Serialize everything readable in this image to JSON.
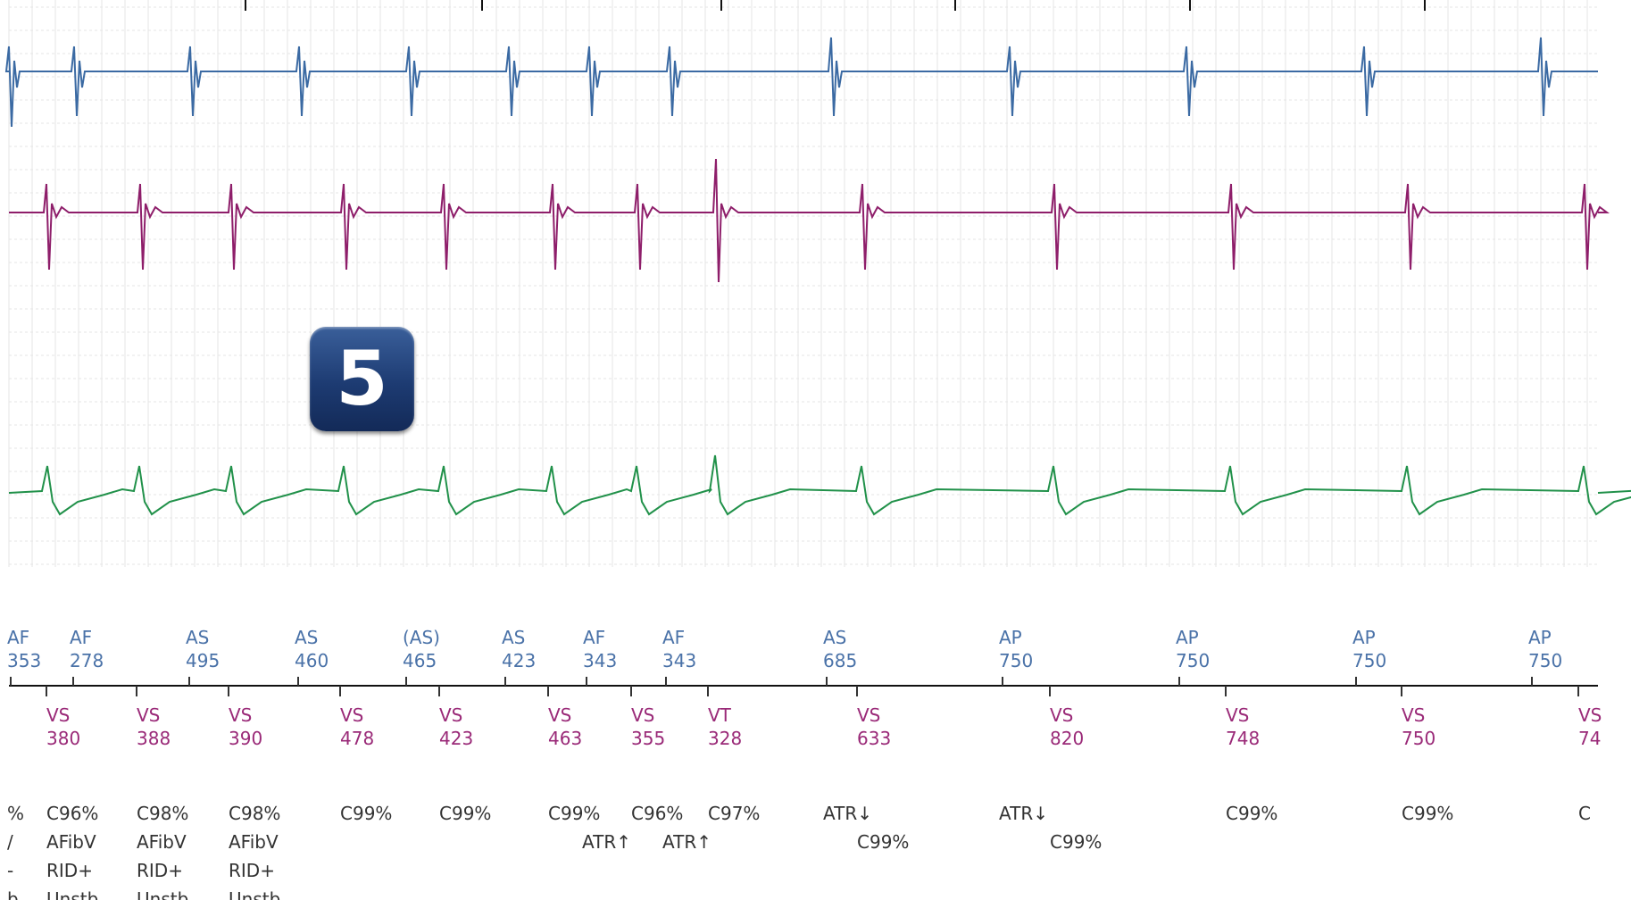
{
  "badge": "5",
  "colors": {
    "channel_1": "#3b6aa3",
    "channel_2": "#8e1e6a",
    "channel_3": "#21914a",
    "atrial_marker": "#4a72a8",
    "ventricular_marker": "#9a2a78",
    "diagnostic_text": "#333333",
    "grid": "#e6e6e6",
    "badge_background": "#1d3b72"
  },
  "atrial_markers": [
    {
      "label": "AF",
      "value": "353"
    },
    {
      "label": "AF",
      "value": "278"
    },
    {
      "label": "AS",
      "value": "495"
    },
    {
      "label": "AS",
      "value": "460"
    },
    {
      "label": "(AS)",
      "value": "465"
    },
    {
      "label": "AS",
      "value": "423"
    },
    {
      "label": "AF",
      "value": "343"
    },
    {
      "label": "AF",
      "value": "343"
    },
    {
      "label": "AS",
      "value": "685"
    },
    {
      "label": "AP",
      "value": "750"
    },
    {
      "label": "AP",
      "value": "750"
    },
    {
      "label": "AP",
      "value": "750"
    },
    {
      "label": "AP",
      "value": "750"
    }
  ],
  "ventricular_markers": [
    {
      "label": "VS",
      "value": "380"
    },
    {
      "label": "VS",
      "value": "388"
    },
    {
      "label": "VS",
      "value": "390"
    },
    {
      "label": "VS",
      "value": "478"
    },
    {
      "label": "VS",
      "value": "423"
    },
    {
      "label": "VS",
      "value": "463"
    },
    {
      "label": "VS",
      "value": "355"
    },
    {
      "label": "VT",
      "value": "328"
    },
    {
      "label": "VS",
      "value": "633"
    },
    {
      "label": "VS",
      "value": "820"
    },
    {
      "label": "VS",
      "value": "748"
    },
    {
      "label": "VS",
      "value": "750"
    },
    {
      "label": "VS",
      "value": "74"
    }
  ],
  "diagnostics": [
    [
      "%",
      "/",
      "-",
      "b"
    ],
    [
      "C96%",
      "AFibV",
      "RID+",
      "Unstb"
    ],
    [
      "C98%",
      "AFibV",
      "RID+",
      "Unstb"
    ],
    [
      "C98%",
      "AFibV",
      "RID+",
      "Unstb"
    ],
    [
      "C99%"
    ],
    [
      "C99%"
    ],
    [
      "C99%"
    ],
    [
      "ATR↑"
    ],
    [
      "C96%"
    ],
    [
      "ATR↑"
    ],
    [
      "C97%"
    ],
    [
      "ATR↓"
    ],
    [
      "C99%"
    ],
    [
      "ATR↓"
    ],
    [
      "C99%"
    ],
    [
      "C99%"
    ],
    [
      "C99%"
    ],
    [
      "C"
    ]
  ]
}
